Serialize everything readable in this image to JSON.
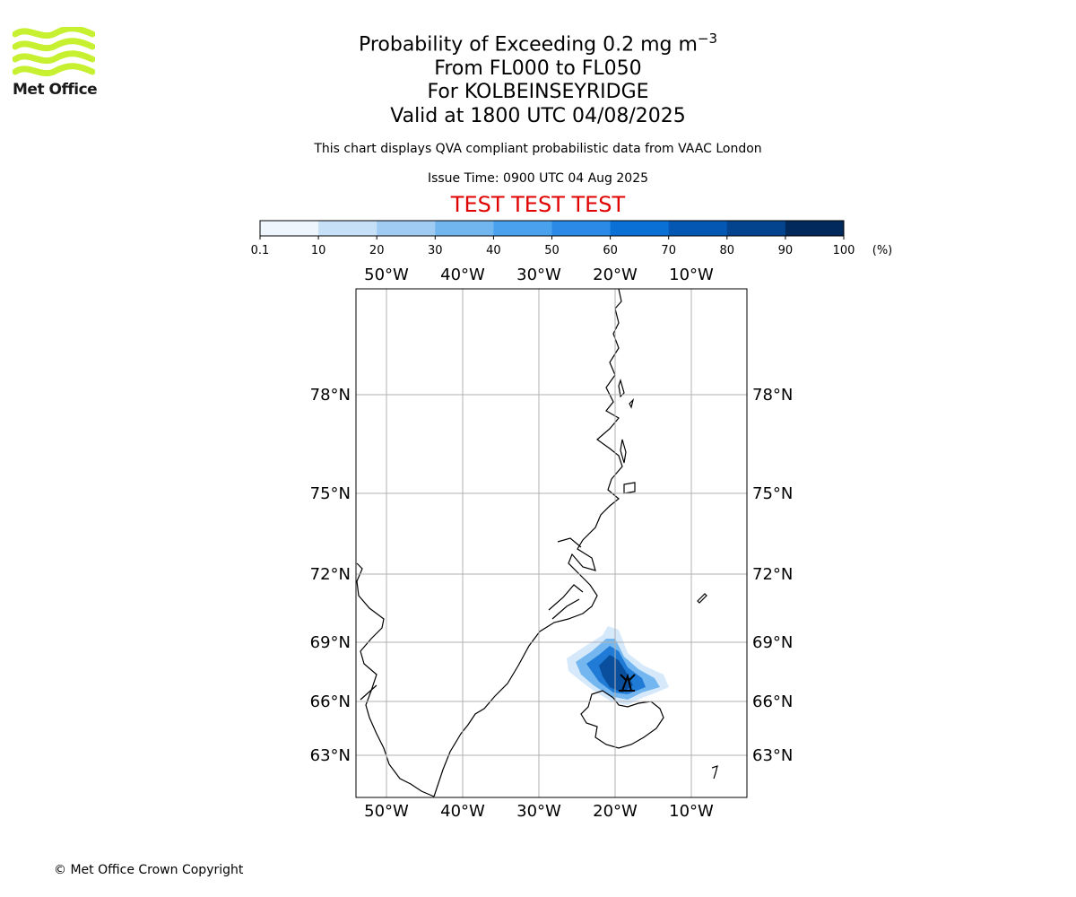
{
  "logo": {
    "text": "Met Office"
  },
  "title": {
    "main": "Probability of Exceeding 0.2 mg m",
    "main_sup": "−3",
    "line2": "From FL000 to FL050",
    "line3": "For KOLBEINSEYRIDGE",
    "line4": "Valid at 1800 UTC 04/08/2025"
  },
  "subtitle": "This chart displays QVA compliant probabilistic data from VAAC London",
  "issue_time": "Issue Time: 0900 UTC 04 Aug 2025",
  "test_banner": "TEST TEST TEST",
  "colorbar": {
    "ticks": [
      "0.1",
      "10",
      "20",
      "30",
      "40",
      "50",
      "60",
      "70",
      "80",
      "90",
      "100"
    ],
    "unit": "(%)",
    "colors": [
      "#eef5fd",
      "#c6e0f8",
      "#a0ccf4",
      "#72b6f0",
      "#4aa2ee",
      "#2a8ae6",
      "#0b70d6",
      "#0557b4",
      "#04438e",
      "#02295c"
    ]
  },
  "map": {
    "lon_labels": [
      "50°W",
      "40°W",
      "30°W",
      "20°W",
      "10°W"
    ],
    "lat_labels": [
      "78°N",
      "75°N",
      "72°N",
      "69°N",
      "66°N",
      "63°N"
    ],
    "volcano_icon": "volcano-icon",
    "plume_colors": {
      "low": "#d6e9fb",
      "mid": "#74b7f0",
      "high": "#1f7bd6",
      "core": "#0a4f9e"
    }
  },
  "copyright": "© Met Office Crown Copyright"
}
